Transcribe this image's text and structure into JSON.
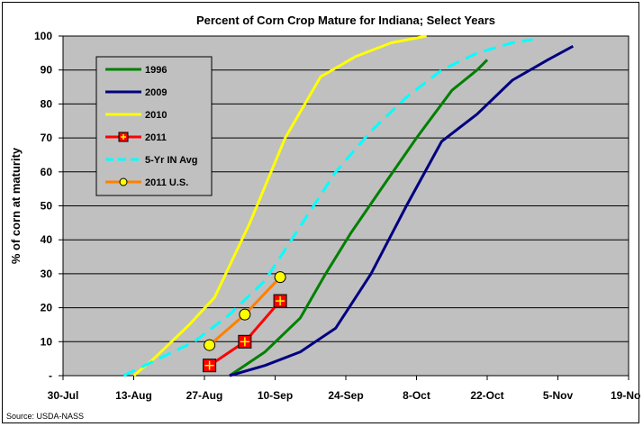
{
  "chart_data": {
    "type": "line",
    "title": "Percent of Corn Crop Mature for Indiana; Select Years",
    "xlabel": "",
    "ylabel": "% of corn at maturity",
    "source": "Source: USDA-NASS",
    "x_tick_labels": [
      "30-Jul",
      "13-Aug",
      "27-Aug",
      "10-Sep",
      "24-Sep",
      "8-Oct",
      "22-Oct",
      "5-Nov",
      "19-Nov"
    ],
    "y_tick_labels": [
      "-",
      "10",
      "20",
      "30",
      "40",
      "50",
      "60",
      "70",
      "80",
      "90",
      "100"
    ],
    "xlim": [
      "30-Jul",
      "19-Nov"
    ],
    "ylim": [
      0,
      100
    ],
    "year": 2011,
    "grid": "horizontal",
    "plot_background": "#c0c0c0",
    "legend_position": "top-left",
    "series": [
      {
        "name": "1996",
        "color": "#008000",
        "style": "solid",
        "marker": "none",
        "points": [
          [
            "01-Sep",
            0
          ],
          [
            "08-Sep",
            7
          ],
          [
            "15-Sep",
            17
          ],
          [
            "20-Sep",
            30
          ],
          [
            "25-Sep",
            42
          ],
          [
            "01-Oct",
            55
          ],
          [
            "08-Oct",
            70
          ],
          [
            "15-Oct",
            84
          ],
          [
            "20-Oct",
            90
          ],
          [
            "22-Oct",
            93
          ]
        ]
      },
      {
        "name": "2009",
        "color": "#000080",
        "style": "solid",
        "marker": "none",
        "points": [
          [
            "01-Sep",
            0
          ],
          [
            "08-Sep",
            3
          ],
          [
            "15-Sep",
            7
          ],
          [
            "22-Sep",
            14
          ],
          [
            "29-Sep",
            30
          ],
          [
            "06-Oct",
            50
          ],
          [
            "13-Oct",
            69
          ],
          [
            "20-Oct",
            77
          ],
          [
            "27-Oct",
            87
          ],
          [
            "03-Nov",
            93
          ],
          [
            "08-Nov",
            97
          ]
        ]
      },
      {
        "name": "2010",
        "color": "#ffff00",
        "style": "solid",
        "marker": "none",
        "points": [
          [
            "13-Aug",
            0
          ],
          [
            "17-Aug",
            5
          ],
          [
            "24-Aug",
            15
          ],
          [
            "29-Aug",
            23
          ],
          [
            "05-Sep",
            45
          ],
          [
            "12-Sep",
            70
          ],
          [
            "19-Sep",
            88
          ],
          [
            "26-Sep",
            94
          ],
          [
            "03-Oct",
            98
          ],
          [
            "10-Oct",
            100
          ]
        ]
      },
      {
        "name": "2011",
        "color": "#ff0000",
        "style": "solid",
        "marker": "square-cross",
        "points": [
          [
            "28-Aug",
            3
          ],
          [
            "04-Sep",
            10
          ],
          [
            "11-Sep",
            22
          ]
        ]
      },
      {
        "name": "5-Yr IN Avg",
        "color": "#00ffff",
        "style": "dashed",
        "marker": "none",
        "points": [
          [
            "11-Aug",
            0
          ],
          [
            "18-Aug",
            5
          ],
          [
            "25-Aug",
            10
          ],
          [
            "01-Sep",
            18
          ],
          [
            "08-Sep",
            28
          ],
          [
            "15-Sep",
            44
          ],
          [
            "22-Sep",
            60
          ],
          [
            "29-Sep",
            72
          ],
          [
            "06-Oct",
            82
          ],
          [
            "13-Oct",
            90
          ],
          [
            "20-Oct",
            95
          ],
          [
            "27-Oct",
            98
          ],
          [
            "31-Oct",
            99
          ]
        ]
      },
      {
        "name": "2011 U.S.",
        "color": "#ff8000",
        "style": "solid",
        "marker": "circle-yellow",
        "points": [
          [
            "28-Aug",
            9
          ],
          [
            "04-Sep",
            18
          ],
          [
            "11-Sep",
            29
          ]
        ]
      }
    ]
  }
}
